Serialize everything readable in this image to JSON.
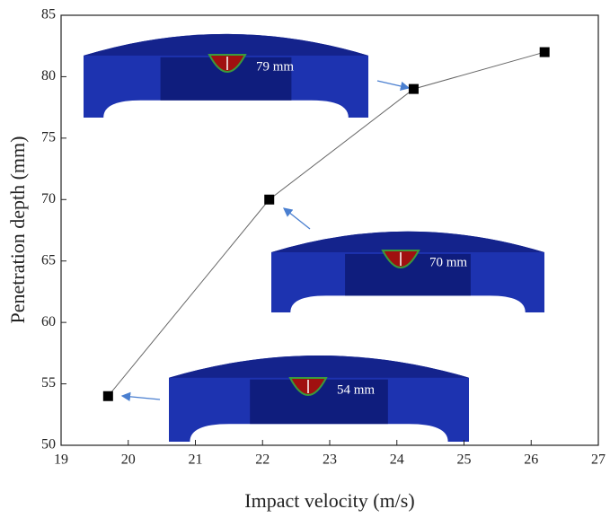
{
  "chart_data": {
    "type": "line",
    "xlabel": "Impact velocity (m/s)",
    "ylabel": "Penetration depth (mm)",
    "x": [
      19.7,
      22.1,
      24.25,
      26.2
    ],
    "values": [
      54,
      70,
      79,
      82
    ],
    "color": "#000000",
    "xlim": [
      19,
      27
    ],
    "xticks": [
      19,
      20,
      21,
      22,
      23,
      24,
      25,
      26,
      27
    ],
    "ylim": [
      50,
      85
    ],
    "yticks": [
      50,
      55,
      60,
      65,
      70,
      75,
      80,
      85
    ],
    "annotations": [
      "79 mm",
      "70 mm",
      "54 mm"
    ]
  }
}
